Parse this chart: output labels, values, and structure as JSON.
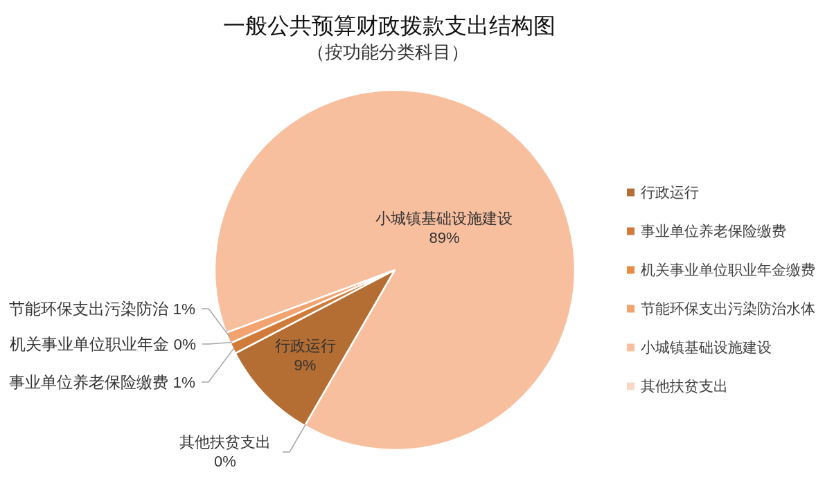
{
  "chart_data": {
    "type": "pie",
    "title": "一般公共预算财政拨款支出结构图",
    "subtitle": "（按功能分类科目）",
    "categories": [
      "行政运行",
      "事业单位养老保险缴费",
      "机关事业单位职业年金缴费",
      "节能环保支出污染防治水体",
      "小城镇基础设施建设",
      "其他扶贫支出"
    ],
    "values": [
      9,
      1,
      0,
      1,
      89,
      0
    ],
    "colors": [
      "#b46d32",
      "#d07b3a",
      "#e98d45",
      "#f3a36f",
      "#f8bf9f",
      "#fad7c6"
    ],
    "value_labels": [
      "行政运行\n9%",
      "事业单位养老保险缴费 1%",
      "机关事业单位职业年金 0%",
      "节能环保支出污染防治 1%",
      "小城镇基础设施建设\n89%",
      "其他扶贫支出\n0%"
    ],
    "legend": "right"
  }
}
